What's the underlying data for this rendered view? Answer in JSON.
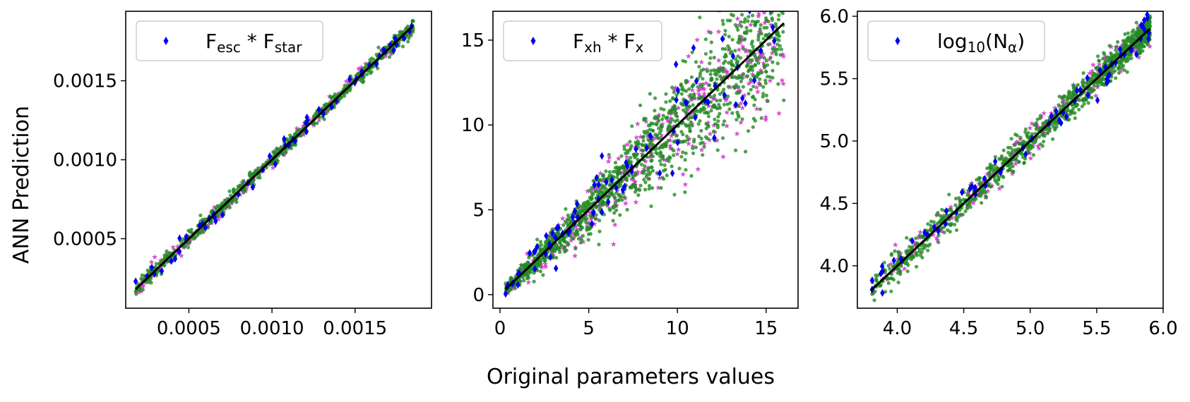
{
  "figure": {
    "ylabel": "ANN Prediction",
    "xlabel": "Original parameters values"
  },
  "colors": {
    "marker_blue": "#0000ee",
    "marker_magenta": "#cc33cc",
    "marker_green": "#228b22",
    "line": "#000000"
  },
  "chart_data": [
    {
      "type": "scatter",
      "legend": {
        "label": "F",
        "sub1": "esc",
        "mid": " * F",
        "sub2": "star",
        "placement": "upper-left",
        "marker": "blue-diamond"
      },
      "xlim": [
        0.00012,
        0.00196
      ],
      "ylim": [
        6e-05,
        0.00194
      ],
      "xticks": [
        0.0005,
        0.001,
        0.0015
      ],
      "xtick_labels": [
        "0.0005",
        "0.0010",
        "0.0015"
      ],
      "yticks": [
        0.0005,
        0.001,
        0.0015
      ],
      "ytick_labels": [
        "0.0005",
        "0.0010",
        "0.0015"
      ],
      "identity_line": [
        0.00018,
        0.00185
      ],
      "scatter": {
        "min": 0.00018,
        "max": 0.00185,
        "noise": 2.5e-05,
        "hetero": 1e-05,
        "n_green": 650,
        "n_magenta": 230,
        "n_blue": 60,
        "seed": 11
      },
      "series": [
        {
          "name": "",
          "marker": "diamond",
          "color": "blue"
        },
        {
          "name": "",
          "marker": "star",
          "color": "magenta"
        },
        {
          "name": "",
          "marker": "circle",
          "color": "green"
        }
      ]
    },
    {
      "type": "scatter",
      "legend": {
        "label": "F",
        "sub1": "xh",
        "mid": " * F",
        "sub2": "x",
        "placement": "upper-left",
        "marker": "blue-diamond"
      },
      "xlim": [
        -0.4,
        16.8
      ],
      "ylim": [
        -0.8,
        16.7
      ],
      "xticks": [
        0,
        5,
        10,
        15
      ],
      "xtick_labels": [
        "0",
        "5",
        "10",
        "15"
      ],
      "yticks": [
        0,
        5,
        10,
        15
      ],
      "ytick_labels": [
        "0",
        "5",
        "10",
        "15"
      ],
      "identity_line": [
        0.3,
        16.0
      ],
      "scatter": {
        "min": 0.3,
        "max": 16.0,
        "noise": 0.15,
        "hetero": 0.13,
        "n_green": 1300,
        "n_magenta": 420,
        "n_blue": 90,
        "seed": 23,
        "compress": 0.025
      },
      "series": [
        {
          "name": "",
          "marker": "diamond",
          "color": "blue"
        },
        {
          "name": "",
          "marker": "star",
          "color": "magenta"
        },
        {
          "name": "",
          "marker": "circle",
          "color": "green"
        }
      ]
    },
    {
      "type": "scatter",
      "legend": {
        "label": "log",
        "sub1": "10",
        "mid": "(N",
        "sub2": "α",
        "tail": ")",
        "placement": "upper-left",
        "marker": "blue-diamond"
      },
      "xlim": [
        3.7,
        6.0
      ],
      "ylim": [
        3.66,
        6.04
      ],
      "xticks": [
        4.0,
        4.5,
        5.0,
        5.5,
        6.0
      ],
      "xtick_labels": [
        "4.0",
        "4.5",
        "5.0",
        "5.5",
        "6.0"
      ],
      "yticks": [
        4.0,
        4.5,
        5.0,
        5.5,
        6.0
      ],
      "ytick_labels": [
        "4.0",
        "4.5",
        "5.0",
        "5.5",
        "6.0"
      ],
      "identity_line": [
        3.8,
        5.9
      ],
      "scatter": {
        "min": 3.8,
        "max": 5.9,
        "noise": 0.06,
        "hetero": 0.0,
        "n_green": 1000,
        "n_magenta": 280,
        "n_blue": 70,
        "seed": 37,
        "skew": 1.6
      },
      "series": [
        {
          "name": "",
          "marker": "diamond",
          "color": "blue"
        },
        {
          "name": "",
          "marker": "star",
          "color": "magenta"
        },
        {
          "name": "",
          "marker": "circle",
          "color": "green"
        }
      ]
    }
  ]
}
